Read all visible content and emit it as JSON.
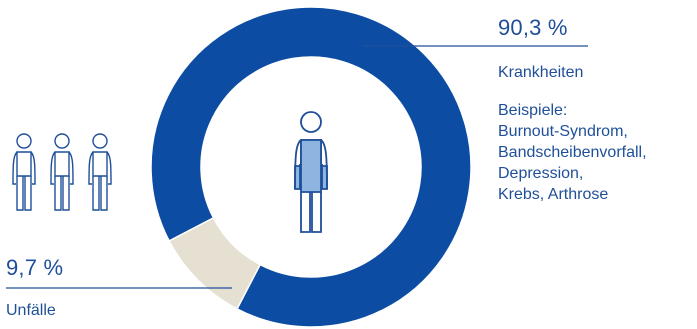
{
  "chart_data": {
    "type": "pie",
    "style": "donut",
    "slices": [
      {
        "label": "Krankheiten",
        "value": 90.3,
        "value_label": "90,3 %",
        "color": "#0d4ca3"
      },
      {
        "label": "Unfälle",
        "value": 9.7,
        "value_label": "9,7 %",
        "color": "#e6e0d2"
      }
    ],
    "annotation": {
      "heading": "Beispiele:",
      "lines": [
        "Burnout-Syndrom,",
        "Bandscheibenvorfall,",
        "Depression,",
        "Krebs, Arthrose"
      ]
    }
  },
  "colors": {
    "text": "#1f4f99",
    "figure_stroke": "#1f4f99",
    "figure_fill": "#8db5df"
  },
  "icons": {
    "center": "person-icon-highlighted",
    "group": [
      "person-outline-icon",
      "person-outline-icon",
      "person-outline-icon"
    ]
  }
}
